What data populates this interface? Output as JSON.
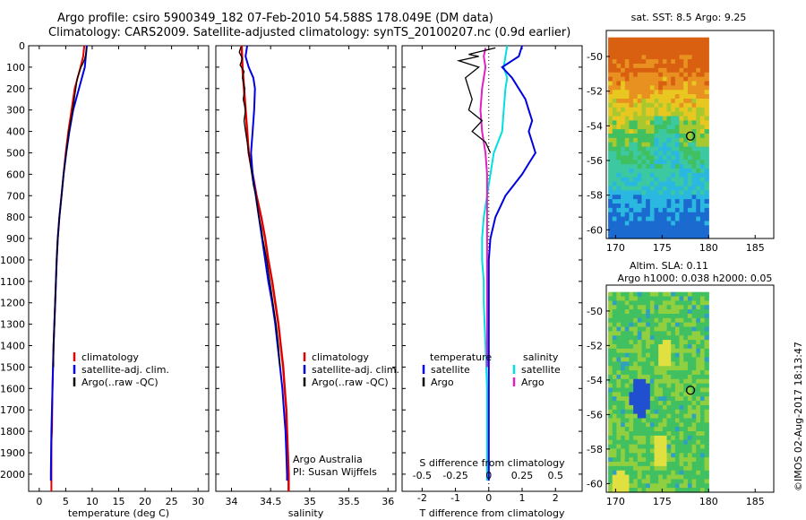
{
  "header": {
    "line1": "Argo profile: csiro 5900349_182 07-Feb-2010 54.588S 178.049E (DM data)",
    "line2": "Climatology: CARS2009. Satellite-adjusted climatology: synTS_20100207.nc (0.9d earlier)"
  },
  "colors": {
    "climatology": "#e00000",
    "satellite": "#0000e0",
    "argo": "#000000",
    "sat_salinity": "#00e0e0",
    "argo_salinity": "#e020c0"
  },
  "chart_data": [
    {
      "type": "line",
      "name": "temperature-profile",
      "xlabel": "temperature (deg C)",
      "ylabel": "",
      "xlim": [
        -2,
        32
      ],
      "ylim": [
        0,
        2080
      ],
      "xticks": [
        0,
        5,
        10,
        15,
        20,
        25,
        30
      ],
      "yticks": [
        0,
        100,
        200,
        300,
        400,
        500,
        600,
        700,
        800,
        900,
        1000,
        1100,
        1200,
        1300,
        1400,
        1500,
        1600,
        1700,
        1800,
        1900,
        2000
      ],
      "legend": [
        "climatology",
        "satellite-adj. clim.",
        "Argo(..raw -QC)"
      ],
      "series": [
        {
          "name": "climatology",
          "depth": [
            0,
            50,
            100,
            200,
            300,
            400,
            500,
            600,
            700,
            800,
            900,
            1000,
            1200,
            1400,
            1600,
            1800,
            1850,
            2000,
            2080
          ],
          "values": [
            8.5,
            8.3,
            7.8,
            6.7,
            6.1,
            5.5,
            5.0,
            4.6,
            4.2,
            3.8,
            3.5,
            3.3,
            3.0,
            2.7,
            2.5,
            2.4,
            2.3,
            2.3,
            2.3
          ]
        },
        {
          "name": "satellite-adj. clim.",
          "depth": [
            0,
            50,
            100,
            200,
            300,
            400,
            500,
            600,
            700,
            800,
            900,
            1000,
            1200,
            1400,
            1600,
            1800,
            2000,
            2030
          ],
          "values": [
            9.0,
            8.8,
            8.6,
            7.5,
            6.4,
            5.7,
            5.1,
            4.6,
            4.2,
            3.8,
            3.5,
            3.3,
            3.0,
            2.7,
            2.5,
            2.3,
            2.2,
            2.2
          ]
        },
        {
          "name": "Argo",
          "depth": [
            5,
            20,
            40,
            60,
            80,
            100,
            150,
            200,
            300,
            400,
            500,
            600,
            700,
            800,
            900,
            1000,
            1200,
            1400,
            1500
          ],
          "values": [
            8.9,
            8.9,
            8.8,
            8.6,
            8.3,
            7.9,
            7.2,
            6.9,
            6.3,
            5.6,
            5.1,
            4.6,
            4.2,
            3.8,
            3.5,
            3.3,
            3.0,
            2.7,
            2.7
          ]
        }
      ]
    },
    {
      "type": "line",
      "name": "salinity-profile",
      "xlabel": "salinity",
      "xlim": [
        33.8,
        36.1
      ],
      "ylim": [
        0,
        2080
      ],
      "xticks": [
        34,
        34.5,
        35,
        35.5,
        36
      ],
      "legend": [
        "climatology",
        "satellite-adj. clim.",
        "Argo(..raw -QC)"
      ],
      "annotation": [
        "Argo Australia",
        "PI: Susan Wijffels"
      ],
      "series": [
        {
          "name": "climatology",
          "depth": [
            0,
            100,
            200,
            300,
            400,
            500,
            600,
            700,
            800,
            900,
            1000,
            1100,
            1200,
            1300,
            1400,
            1500,
            1600,
            1700,
            1800,
            1900,
            2000,
            2080
          ],
          "values": [
            34.13,
            34.14,
            34.16,
            34.18,
            34.2,
            34.22,
            34.27,
            34.32,
            34.38,
            34.43,
            34.47,
            34.52,
            34.56,
            34.6,
            34.63,
            34.66,
            34.68,
            34.7,
            34.71,
            34.72,
            34.73,
            34.73
          ]
        },
        {
          "name": "satellite-adj. clim.",
          "depth": [
            0,
            50,
            100,
            150,
            200,
            300,
            400,
            500,
            600,
            700,
            800,
            900,
            1000,
            1100,
            1200,
            1300,
            1400,
            1500,
            1600,
            1700,
            1800,
            1900,
            2000,
            2030
          ],
          "values": [
            34.2,
            34.18,
            34.22,
            34.28,
            34.3,
            34.29,
            34.27,
            34.25,
            34.27,
            34.31,
            34.35,
            34.39,
            34.43,
            34.47,
            34.52,
            34.56,
            34.59,
            34.62,
            34.65,
            34.67,
            34.69,
            34.7,
            34.71,
            34.71
          ]
        },
        {
          "name": "Argo",
          "depth": [
            5,
            30,
            60,
            90,
            120,
            150,
            200,
            250,
            300,
            350,
            400,
            450,
            500,
            550,
            600,
            650,
            700,
            750,
            800,
            850,
            900,
            1000,
            1100,
            1200,
            1300,
            1400,
            1500
          ],
          "values": [
            34.12,
            34.1,
            34.14,
            34.11,
            34.16,
            34.14,
            34.17,
            34.15,
            34.18,
            34.16,
            34.18,
            34.2,
            34.22,
            34.24,
            34.26,
            34.28,
            34.31,
            34.33,
            34.35,
            34.38,
            34.4,
            34.45,
            34.49,
            34.53,
            34.57,
            34.6,
            34.62
          ]
        }
      ]
    },
    {
      "type": "line",
      "name": "difference-profile",
      "xlabel": "T difference from climatology",
      "xlabel2": "S difference from climatology",
      "xlim": [
        -2.6,
        2.8
      ],
      "ylim": [
        0,
        2080
      ],
      "xticks": [
        -2,
        -1,
        0,
        1,
        2
      ],
      "sticks": [
        {
          "pos": -2,
          "label": "-0.5"
        },
        {
          "pos": -1,
          "label": "-0.25"
        },
        {
          "pos": 0,
          "label": "0"
        },
        {
          "pos": 1,
          "label": "0.25"
        },
        {
          "pos": 2,
          "label": "0.5"
        }
      ],
      "legend_title_t": "temperature",
      "legend_title_s": "salinity",
      "legend_t": [
        "satellite",
        "Argo"
      ],
      "legend_s": [
        "satellite",
        "Argo"
      ],
      "series": [
        {
          "name": "T satellite",
          "depth": [
            0,
            50,
            100,
            150,
            200,
            250,
            300,
            350,
            400,
            450,
            500,
            550,
            600,
            700,
            800,
            900,
            1000,
            1200,
            1400,
            1600,
            1800,
            2000,
            2030
          ],
          "values": [
            1.0,
            0.9,
            0.4,
            0.7,
            0.9,
            1.1,
            1.2,
            1.3,
            1.2,
            1.3,
            1.4,
            1.2,
            1.0,
            0.5,
            0.2,
            0.05,
            0,
            0,
            0,
            0,
            0,
            0,
            0
          ]
        },
        {
          "name": "T Argo",
          "depth": [
            10,
            40,
            50,
            70,
            100,
            150,
            200,
            250,
            300,
            350,
            400,
            450,
            500
          ],
          "values": [
            0.2,
            -0.6,
            -0.3,
            -0.9,
            -0.3,
            -0.7,
            -0.6,
            -0.5,
            -0.6,
            -0.2,
            -0.5,
            -0.1,
            0.05
          ]
        },
        {
          "name": "S satellite",
          "depth": [
            0,
            50,
            100,
            150,
            200,
            300,
            400,
            500,
            600,
            700,
            800,
            900,
            1000,
            1100,
            1200,
            1400,
            1600,
            1800,
            2000,
            2030
          ],
          "values": [
            0.55,
            0.5,
            0.45,
            0.55,
            0.5,
            0.45,
            0.4,
            0.15,
            0.05,
            -0.05,
            -0.15,
            -0.2,
            -0.2,
            -0.15,
            -0.15,
            -0.1,
            -0.05,
            -0.05,
            -0.05,
            -0.05
          ]
        },
        {
          "name": "S Argo",
          "depth": [
            10,
            50,
            100,
            150,
            200,
            300,
            400,
            500,
            600,
            700,
            800,
            900,
            1000,
            1100,
            1200,
            1300,
            1400,
            1500
          ],
          "values": [
            -0.1,
            -0.15,
            -0.1,
            -0.15,
            -0.2,
            -0.25,
            -0.2,
            -0.1,
            -0.05,
            -0.05,
            -0.05,
            -0.05,
            -0.05,
            -0.05,
            -0.05,
            -0.05,
            -0.05,
            -0.05
          ]
        }
      ]
    },
    {
      "type": "heatmap",
      "name": "sst-map",
      "title": "sat. SST: 8.5 Argo: 9.25",
      "xlim": [
        169,
        187
      ],
      "ylim": [
        -60.5,
        -48.5
      ],
      "xticks": [
        170,
        175,
        180,
        185
      ],
      "yticks": [
        -50,
        -52,
        -54,
        -56,
        -58,
        -60
      ],
      "argo_position": {
        "lon": 178.05,
        "lat": -54.59
      }
    },
    {
      "type": "heatmap",
      "name": "sla-map",
      "title1": "Altim. SLA: 0.11",
      "title2": "Argo h1000: 0.038 h2000: 0.05",
      "xlim": [
        169,
        187
      ],
      "ylim": [
        -60.5,
        -48.5
      ],
      "xticks": [
        170,
        175,
        180,
        185
      ],
      "yticks": [
        -50,
        -52,
        -54,
        -56,
        -58,
        -60
      ],
      "argo_position": {
        "lon": 178.05,
        "lat": -54.59
      }
    }
  ],
  "footer": {
    "stamp": "©IMOS 02-Aug-2017 18:13:47"
  }
}
